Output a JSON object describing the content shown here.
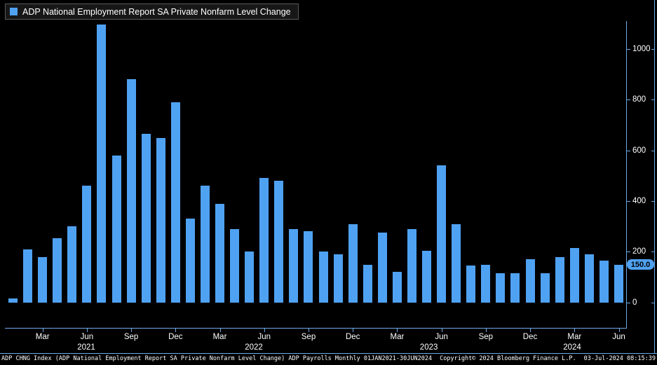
{
  "legend": {
    "label": "ADP National Employment Report SA Private Nonfarm Level Change"
  },
  "annotations": {
    "last_value": "150.0"
  },
  "footer": {
    "left": "ADP CHNG Index (ADP National Employment Report SA Private Nonfarm Level Change) ADP Payrolls  Monthly 01JAN2021-30JUN2024",
    "copyright": "Copyright© 2024 Bloomberg Finance L.P.",
    "timestamp": "03-Jul-2024 08:15:39"
  },
  "colors": {
    "bar": "#4fa2f2",
    "axis": "#6eaae8",
    "background": "#000000",
    "badge_bg": "#4fa2f2",
    "badge_text": "#000000"
  },
  "chart_data": {
    "type": "bar",
    "title": "ADP National Employment Report SA Private Nonfarm Level Change",
    "xlabel": "",
    "ylabel": "",
    "grid": false,
    "legend_position": "top-left",
    "ylim": [
      -100,
      1110
    ],
    "yticks": [
      0,
      200,
      400,
      600,
      800,
      1000
    ],
    "x": [
      "Jan 2021",
      "Feb 2021",
      "Mar 2021",
      "Apr 2021",
      "May 2021",
      "Jun 2021",
      "Jul 2021",
      "Aug 2021",
      "Sep 2021",
      "Oct 2021",
      "Nov 2021",
      "Dec 2021",
      "Jan 2022",
      "Feb 2022",
      "Mar 2022",
      "Apr 2022",
      "May 2022",
      "Jun 2022",
      "Jul 2022",
      "Aug 2022",
      "Sep 2022",
      "Oct 2022",
      "Nov 2022",
      "Dec 2022",
      "Jan 2023",
      "Feb 2023",
      "Mar 2023",
      "Apr 2023",
      "May 2023",
      "Jun 2023",
      "Jul 2023",
      "Aug 2023",
      "Sep 2023",
      "Oct 2023",
      "Nov 2023",
      "Dec 2023",
      "Jan 2024",
      "Feb 2024",
      "Mar 2024",
      "Apr 2024",
      "May 2024",
      "Jun 2024"
    ],
    "values": [
      15,
      210,
      180,
      255,
      300,
      460,
      1095,
      580,
      880,
      665,
      650,
      790,
      330,
      460,
      390,
      290,
      200,
      490,
      480,
      290,
      280,
      200,
      190,
      310,
      150,
      275,
      120,
      290,
      205,
      540,
      310,
      145,
      150,
      115,
      115,
      170,
      115,
      180,
      215,
      190,
      165,
      150
    ],
    "last_value": 150,
    "xticks": [
      {
        "index": 2,
        "label": "Mar"
      },
      {
        "index": 5,
        "label": "Jun"
      },
      {
        "index": 8,
        "label": "Sep"
      },
      {
        "index": 11,
        "label": "Dec"
      },
      {
        "index": 14,
        "label": "Mar"
      },
      {
        "index": 17,
        "label": "Jun"
      },
      {
        "index": 20,
        "label": "Sep"
      },
      {
        "index": 23,
        "label": "Dec"
      },
      {
        "index": 26,
        "label": "Mar"
      },
      {
        "index": 29,
        "label": "Jun"
      },
      {
        "index": 32,
        "label": "Sep"
      },
      {
        "index": 35,
        "label": "Dec"
      },
      {
        "index": 38,
        "label": "Mar"
      },
      {
        "index": 41,
        "label": "Jun"
      }
    ],
    "year_labels": [
      {
        "label": "2021",
        "pos": 0.13
      },
      {
        "label": "2022",
        "pos": 0.4
      },
      {
        "label": "2023",
        "pos": 0.682
      },
      {
        "label": "2024",
        "pos": 0.913
      }
    ]
  }
}
